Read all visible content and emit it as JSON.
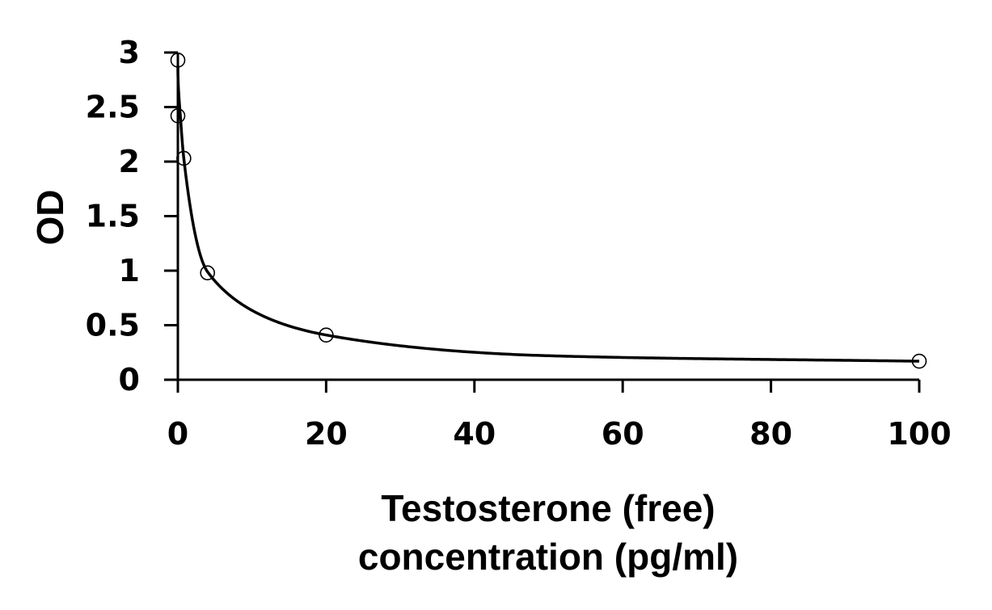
{
  "chart_data": {
    "type": "scatter",
    "xlabel_lines": [
      "Testosterone (free)",
      "concentration (pg/ml)"
    ],
    "ylabel": "OD",
    "xlim": [
      0,
      100
    ],
    "ylim": [
      0,
      3
    ],
    "x_ticks": [
      0,
      20,
      40,
      60,
      80,
      100
    ],
    "y_ticks": [
      0,
      0.5,
      1,
      1.5,
      2,
      2.5,
      3
    ],
    "y_tick_labels": [
      "0",
      "0.5",
      "1",
      "1.5",
      "2",
      "2.5",
      "3"
    ],
    "grid": false,
    "legend": "none",
    "series": [
      {
        "marker": "open-circle",
        "points": [
          {
            "x": 0,
            "y": 2.93
          },
          {
            "x": 0,
            "y": 2.42
          },
          {
            "x": 0.8,
            "y": 2.03
          },
          {
            "x": 4,
            "y": 0.98
          },
          {
            "x": 20,
            "y": 0.41
          },
          {
            "x": 100,
            "y": 0.17
          }
        ],
        "fit_curve": true
      }
    ],
    "colors": {
      "axis": "#000000",
      "curve": "#000000",
      "marker": "#000000",
      "background": "#ffffff"
    }
  }
}
